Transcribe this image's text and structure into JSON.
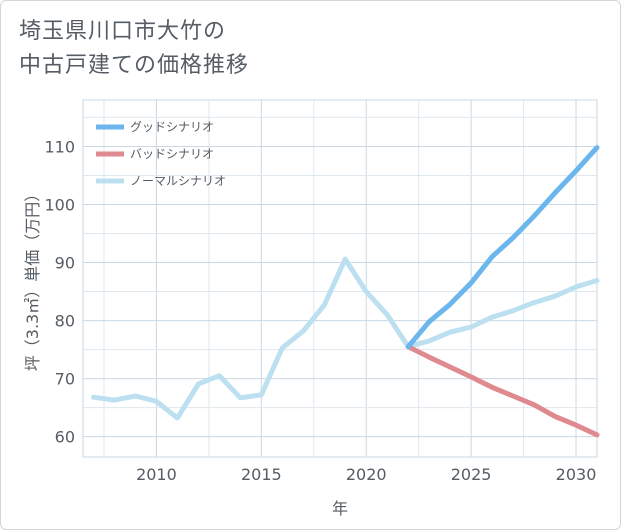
{
  "title": {
    "line1": "埼玉県川口市大竹の",
    "line2": "中古戸建ての価格推移"
  },
  "chart_data": {
    "type": "line",
    "xlabel": "年",
    "ylabel": "坪（3.3㎡）単価（万円）",
    "xlim": [
      2006.5,
      2031
    ],
    "ylim": [
      56.5,
      118
    ],
    "x_ticks": [
      2010,
      2015,
      2020,
      2025,
      2030
    ],
    "y_ticks": [
      60,
      70,
      80,
      90,
      100,
      110
    ],
    "grid": true,
    "legend_position": "top-left",
    "series": [
      {
        "name": "グッドシナリオ",
        "color": "#6bb6ec",
        "x": [
          2022,
          2023,
          2024,
          2025,
          2026,
          2027,
          2028,
          2029,
          2030,
          2031
        ],
        "values": [
          75.5,
          79.8,
          82.8,
          86.5,
          91.0,
          94.3,
          98.0,
          102.0,
          105.8,
          109.8
        ]
      },
      {
        "name": "バッドシナリオ",
        "color": "#df8a8f",
        "x": [
          2022,
          2023,
          2024,
          2025,
          2026,
          2027,
          2028,
          2029,
          2030,
          2031
        ],
        "values": [
          75.5,
          73.7,
          72.0,
          70.3,
          68.5,
          67.0,
          65.5,
          63.5,
          62.0,
          60.3
        ]
      },
      {
        "name": "ノーマルシナリオ",
        "color": "#bde0f0",
        "x": [
          2007,
          2008,
          2009,
          2010,
          2011,
          2012,
          2013,
          2014,
          2015,
          2016,
          2017,
          2018,
          2019,
          2020,
          2021,
          2022,
          2023,
          2024,
          2025,
          2026,
          2027,
          2028,
          2029,
          2030,
          2031
        ],
        "values": [
          66.8,
          66.3,
          67.0,
          66.1,
          63.2,
          69.1,
          70.5,
          66.7,
          67.2,
          75.3,
          78.2,
          82.7,
          90.6,
          85.0,
          81.0,
          75.5,
          76.5,
          78.0,
          78.9,
          80.6,
          81.7,
          83.1,
          84.2,
          85.8,
          86.9
        ]
      }
    ]
  }
}
